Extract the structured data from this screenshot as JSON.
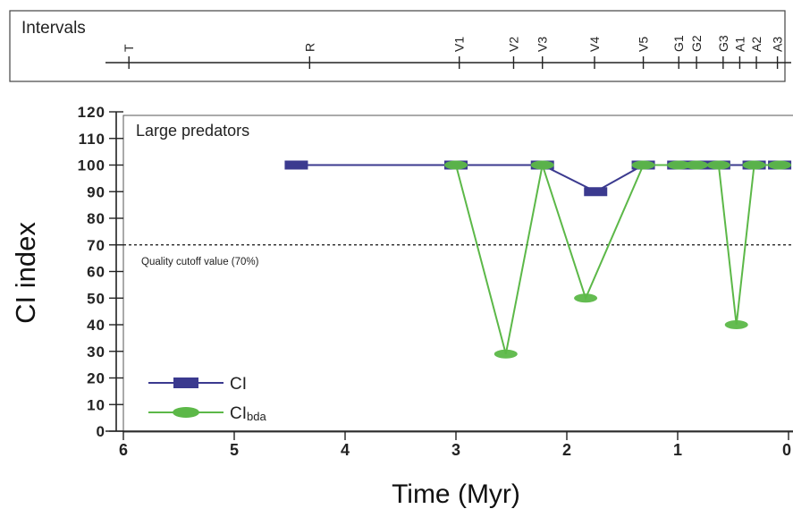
{
  "chart_data": {
    "type": "line",
    "intervals_panel": {
      "label": "Intervals",
      "ticks": [
        {
          "label": "T",
          "x": 5.95
        },
        {
          "label": "R",
          "x": 4.32
        },
        {
          "label": "V1",
          "x": 2.97
        },
        {
          "label": "V2",
          "x": 2.48
        },
        {
          "label": "V3",
          "x": 2.22
        },
        {
          "label": "V4",
          "x": 1.75
        },
        {
          "label": "V5",
          "x": 1.31
        },
        {
          "label": "G1",
          "x": 0.99
        },
        {
          "label": "G2",
          "x": 0.83
        },
        {
          "label": "G3",
          "x": 0.59
        },
        {
          "label": "A1",
          "x": 0.44
        },
        {
          "label": "A2",
          "x": 0.29
        },
        {
          "label": "A3",
          "x": 0.1
        }
      ]
    },
    "panel_label": "Large predators",
    "xlabel": "Time (Myr)",
    "ylabel": "CI index",
    "xlim": [
      6,
      0
    ],
    "ylim": [
      0,
      120
    ],
    "xticks": [
      6,
      5,
      4,
      3,
      2,
      1,
      0
    ],
    "xtick_labels": [
      "6",
      "5",
      "4",
      "3",
      "2",
      "1",
      "0"
    ],
    "yticks": [
      0,
      10,
      20,
      30,
      40,
      50,
      60,
      70,
      80,
      90,
      100,
      110,
      120
    ],
    "ytick_labels": [
      "0",
      "10",
      "20",
      "30",
      "40",
      "50",
      "60",
      "70",
      "80",
      "90",
      "100",
      "110",
      "120"
    ],
    "cutoff": {
      "value": 70,
      "label": "Quality cutoff value (70%)"
    },
    "series": [
      {
        "name": "CI",
        "color": "#3b3a8f",
        "marker": "square",
        "x": [
          4.44,
          3.0,
          2.22,
          1.74,
          1.31,
          0.99,
          0.83,
          0.63,
          0.31,
          0.08
        ],
        "y": [
          100,
          100,
          100,
          90,
          100,
          100,
          100,
          100,
          100,
          100
        ]
      },
      {
        "name": "CI",
        "name_subscript": "bda",
        "color": "#5cb848",
        "marker": "circle",
        "x": [
          3.0,
          2.55,
          2.22,
          1.83,
          1.31,
          0.99,
          0.83,
          0.63,
          0.47,
          0.31,
          0.08
        ],
        "y": [
          100,
          29,
          100,
          50,
          100,
          100,
          100,
          100,
          40,
          100,
          100
        ]
      }
    ],
    "grid": false,
    "legend_position": "bottom-left"
  }
}
